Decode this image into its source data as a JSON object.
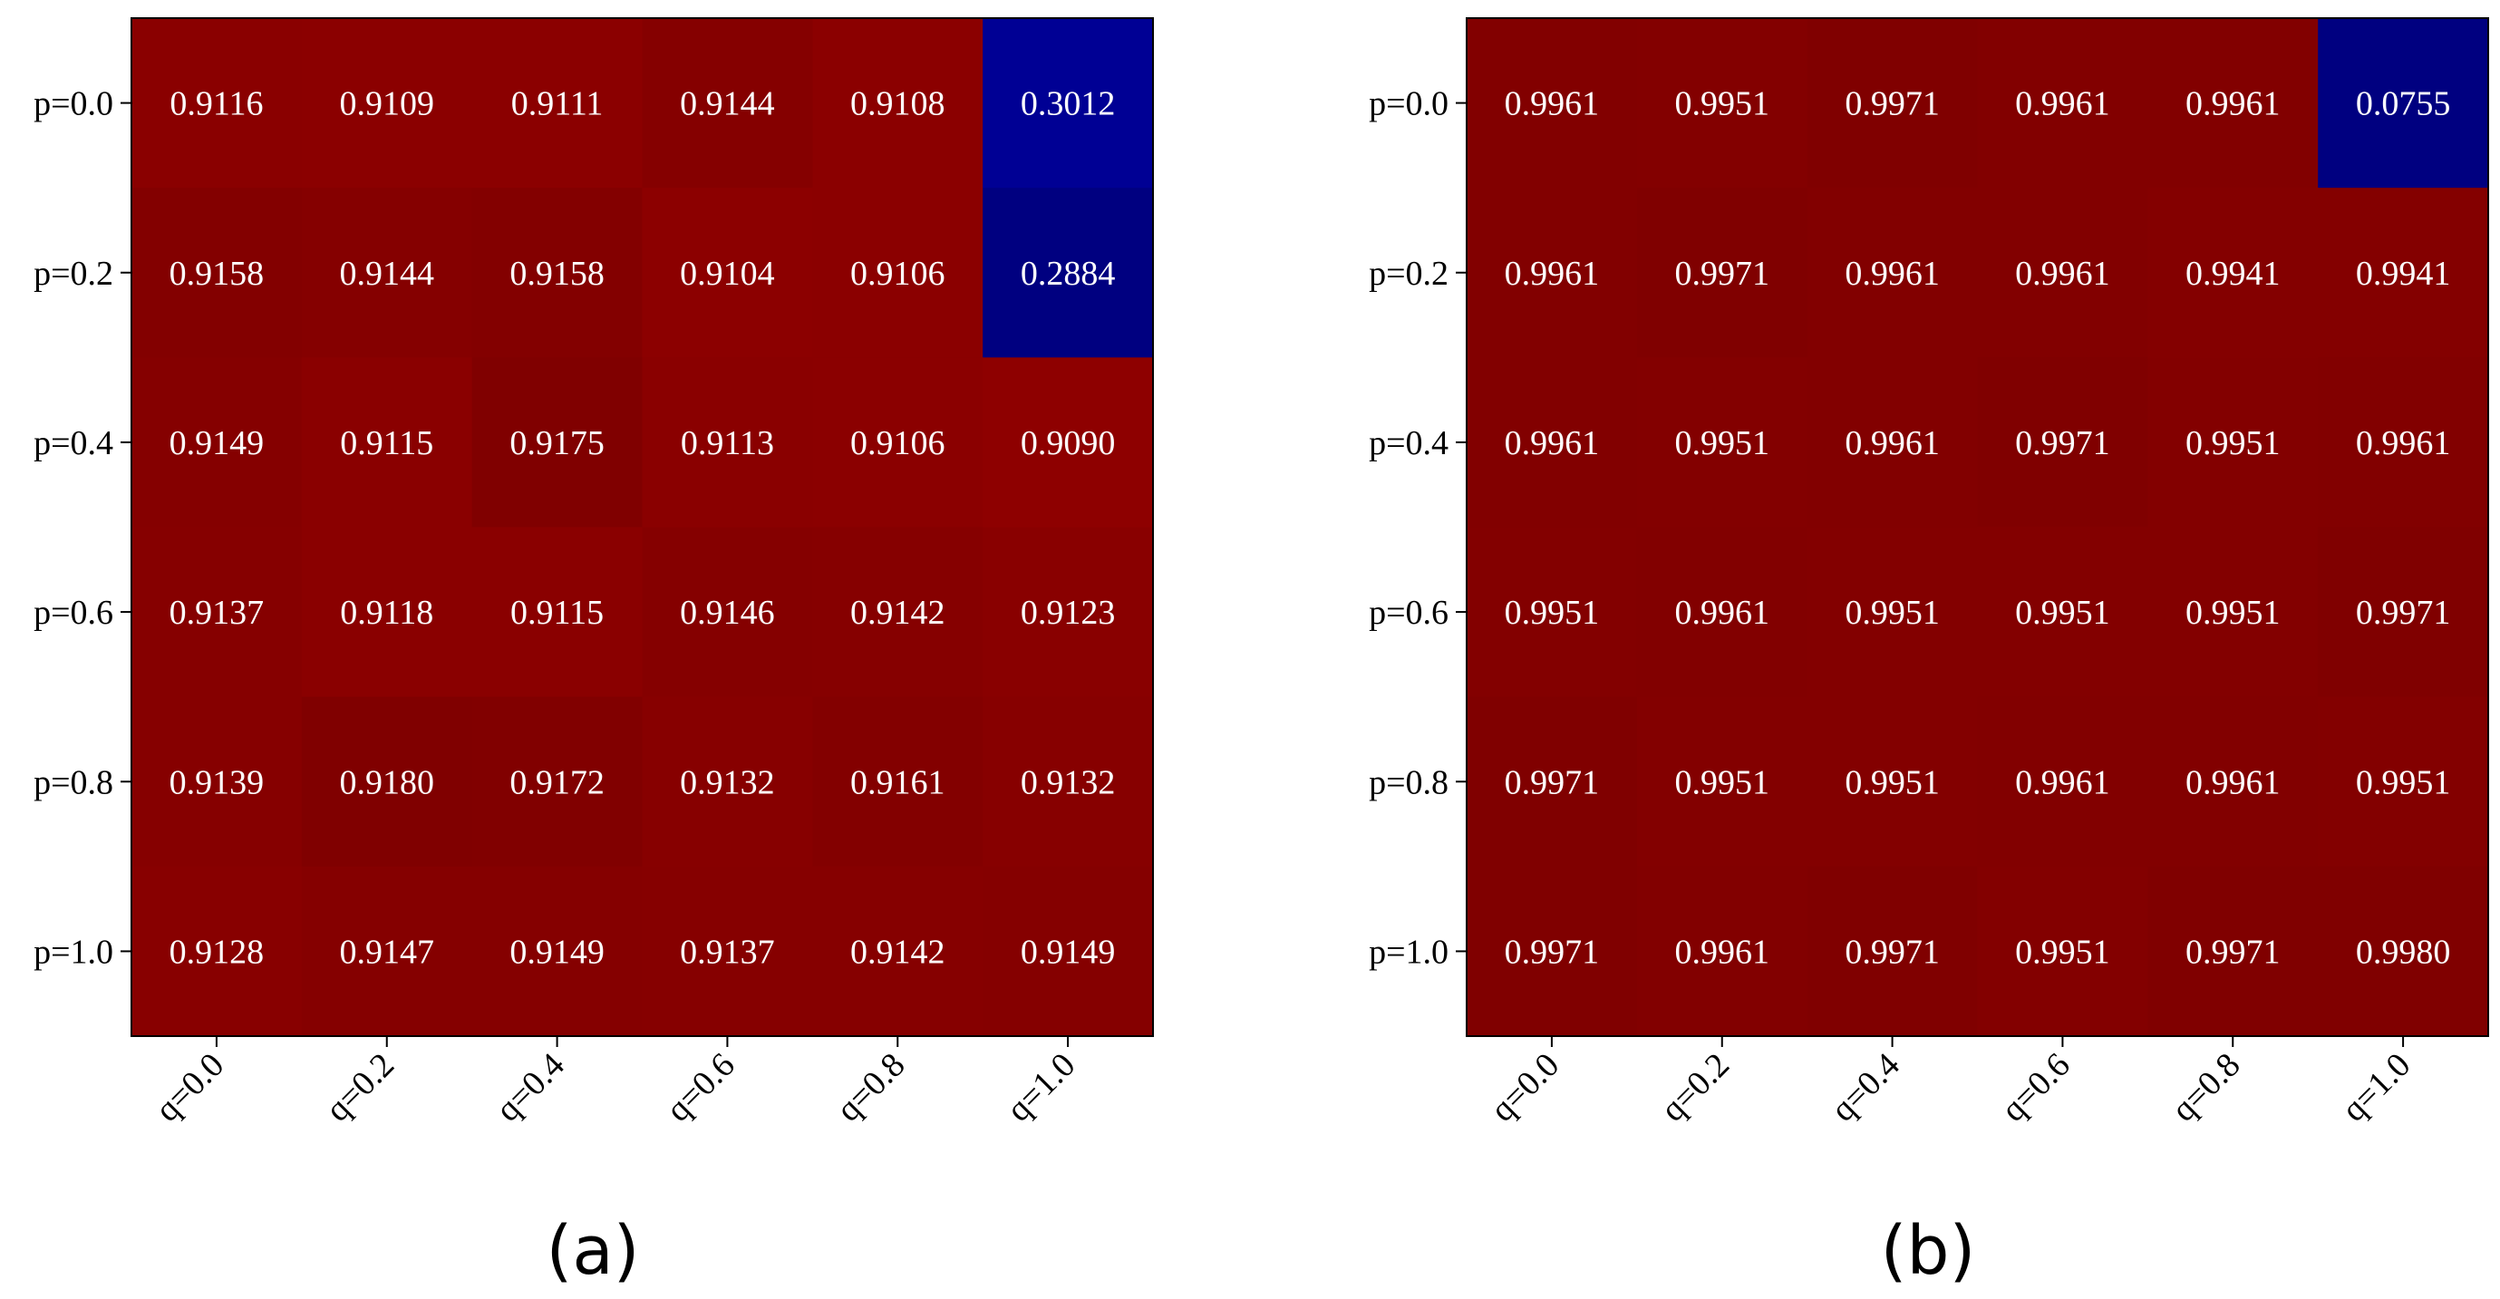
{
  "chart_data": [
    {
      "type": "heatmap",
      "panel_label": "(a)",
      "row_labels": [
        "p=0.0",
        "p=0.2",
        "p=0.4",
        "p=0.6",
        "p=0.8",
        "p=1.0"
      ],
      "col_labels": [
        "q=0.0",
        "q=0.2",
        "q=0.4",
        "q=0.6",
        "q=0.8",
        "q=1.0"
      ],
      "values": [
        [
          "0.9116",
          "0.9109",
          "0.9111",
          "0.9144",
          "0.9108",
          "0.3012"
        ],
        [
          "0.9158",
          "0.9144",
          "0.9158",
          "0.9104",
          "0.9106",
          "0.2884"
        ],
        [
          "0.9149",
          "0.9115",
          "0.9175",
          "0.9113",
          "0.9106",
          "0.9090"
        ],
        [
          "0.9137",
          "0.9118",
          "0.9115",
          "0.9146",
          "0.9142",
          "0.9123"
        ],
        [
          "0.9139",
          "0.9180",
          "0.9172",
          "0.9132",
          "0.9161",
          "0.9132"
        ],
        [
          "0.9128",
          "0.9147",
          "0.9149",
          "0.9137",
          "0.9142",
          "0.9149"
        ]
      ],
      "colormap": "jet"
    },
    {
      "type": "heatmap",
      "panel_label": "(b)",
      "row_labels": [
        "p=0.0",
        "p=0.2",
        "p=0.4",
        "p=0.6",
        "p=0.8",
        "p=1.0"
      ],
      "col_labels": [
        "q=0.0",
        "q=0.2",
        "q=0.4",
        "q=0.6",
        "q=0.8",
        "q=1.0"
      ],
      "values": [
        [
          "0.9961",
          "0.9951",
          "0.9971",
          "0.9961",
          "0.9961",
          "0.0755"
        ],
        [
          "0.9961",
          "0.9971",
          "0.9961",
          "0.9961",
          "0.9941",
          "0.9941"
        ],
        [
          "0.9961",
          "0.9951",
          "0.9961",
          "0.9971",
          "0.9951",
          "0.9961"
        ],
        [
          "0.9951",
          "0.9961",
          "0.9951",
          "0.9951",
          "0.9951",
          "0.9971"
        ],
        [
          "0.9971",
          "0.9951",
          "0.9951",
          "0.9961",
          "0.9961",
          "0.9951"
        ],
        [
          "0.9971",
          "0.9961",
          "0.9971",
          "0.9951",
          "0.9971",
          "0.9980"
        ]
      ],
      "colormap": "jet"
    }
  ]
}
